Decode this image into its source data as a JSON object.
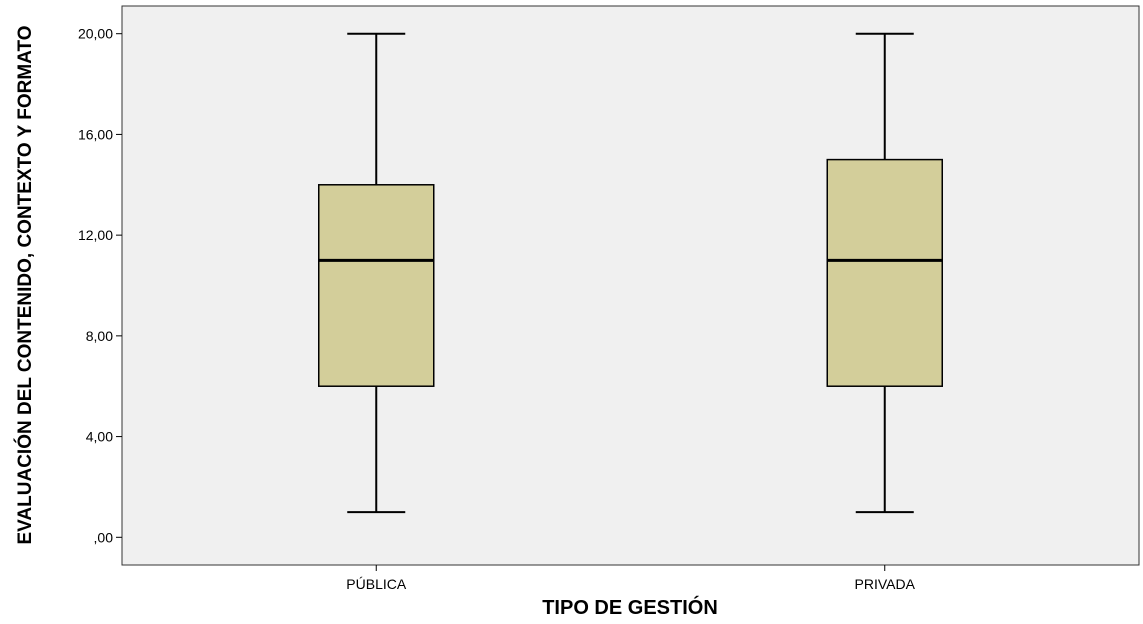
{
  "chart_data": {
    "type": "box",
    "title": "",
    "xlabel": "TIPO DE GESTIÓN",
    "ylabel": "EVALUACIÓN DEL CONTENIDO, CONTEXTO Y FORMATO",
    "ylim": [
      -1.1,
      21.1
    ],
    "yticks": [
      0,
      4,
      8,
      12,
      16,
      20
    ],
    "ytick_labels": [
      ",00",
      "4,00",
      "8,00",
      "12,00",
      "16,00",
      "20,00"
    ],
    "grid": false,
    "categories": [
      "PÚBLICA",
      "PRIVADA"
    ],
    "boxes": [
      {
        "category": "PÚBLICA",
        "min": 1,
        "q1": 6,
        "median": 11,
        "q3": 14,
        "max": 20
      },
      {
        "category": "PRIVADA",
        "min": 1,
        "q1": 6,
        "median": 11,
        "q3": 15,
        "max": 20
      }
    ],
    "colors": {
      "plot_background": "#f0f0f0",
      "box_fill": "#d3ce9a",
      "line": "#000000"
    }
  }
}
